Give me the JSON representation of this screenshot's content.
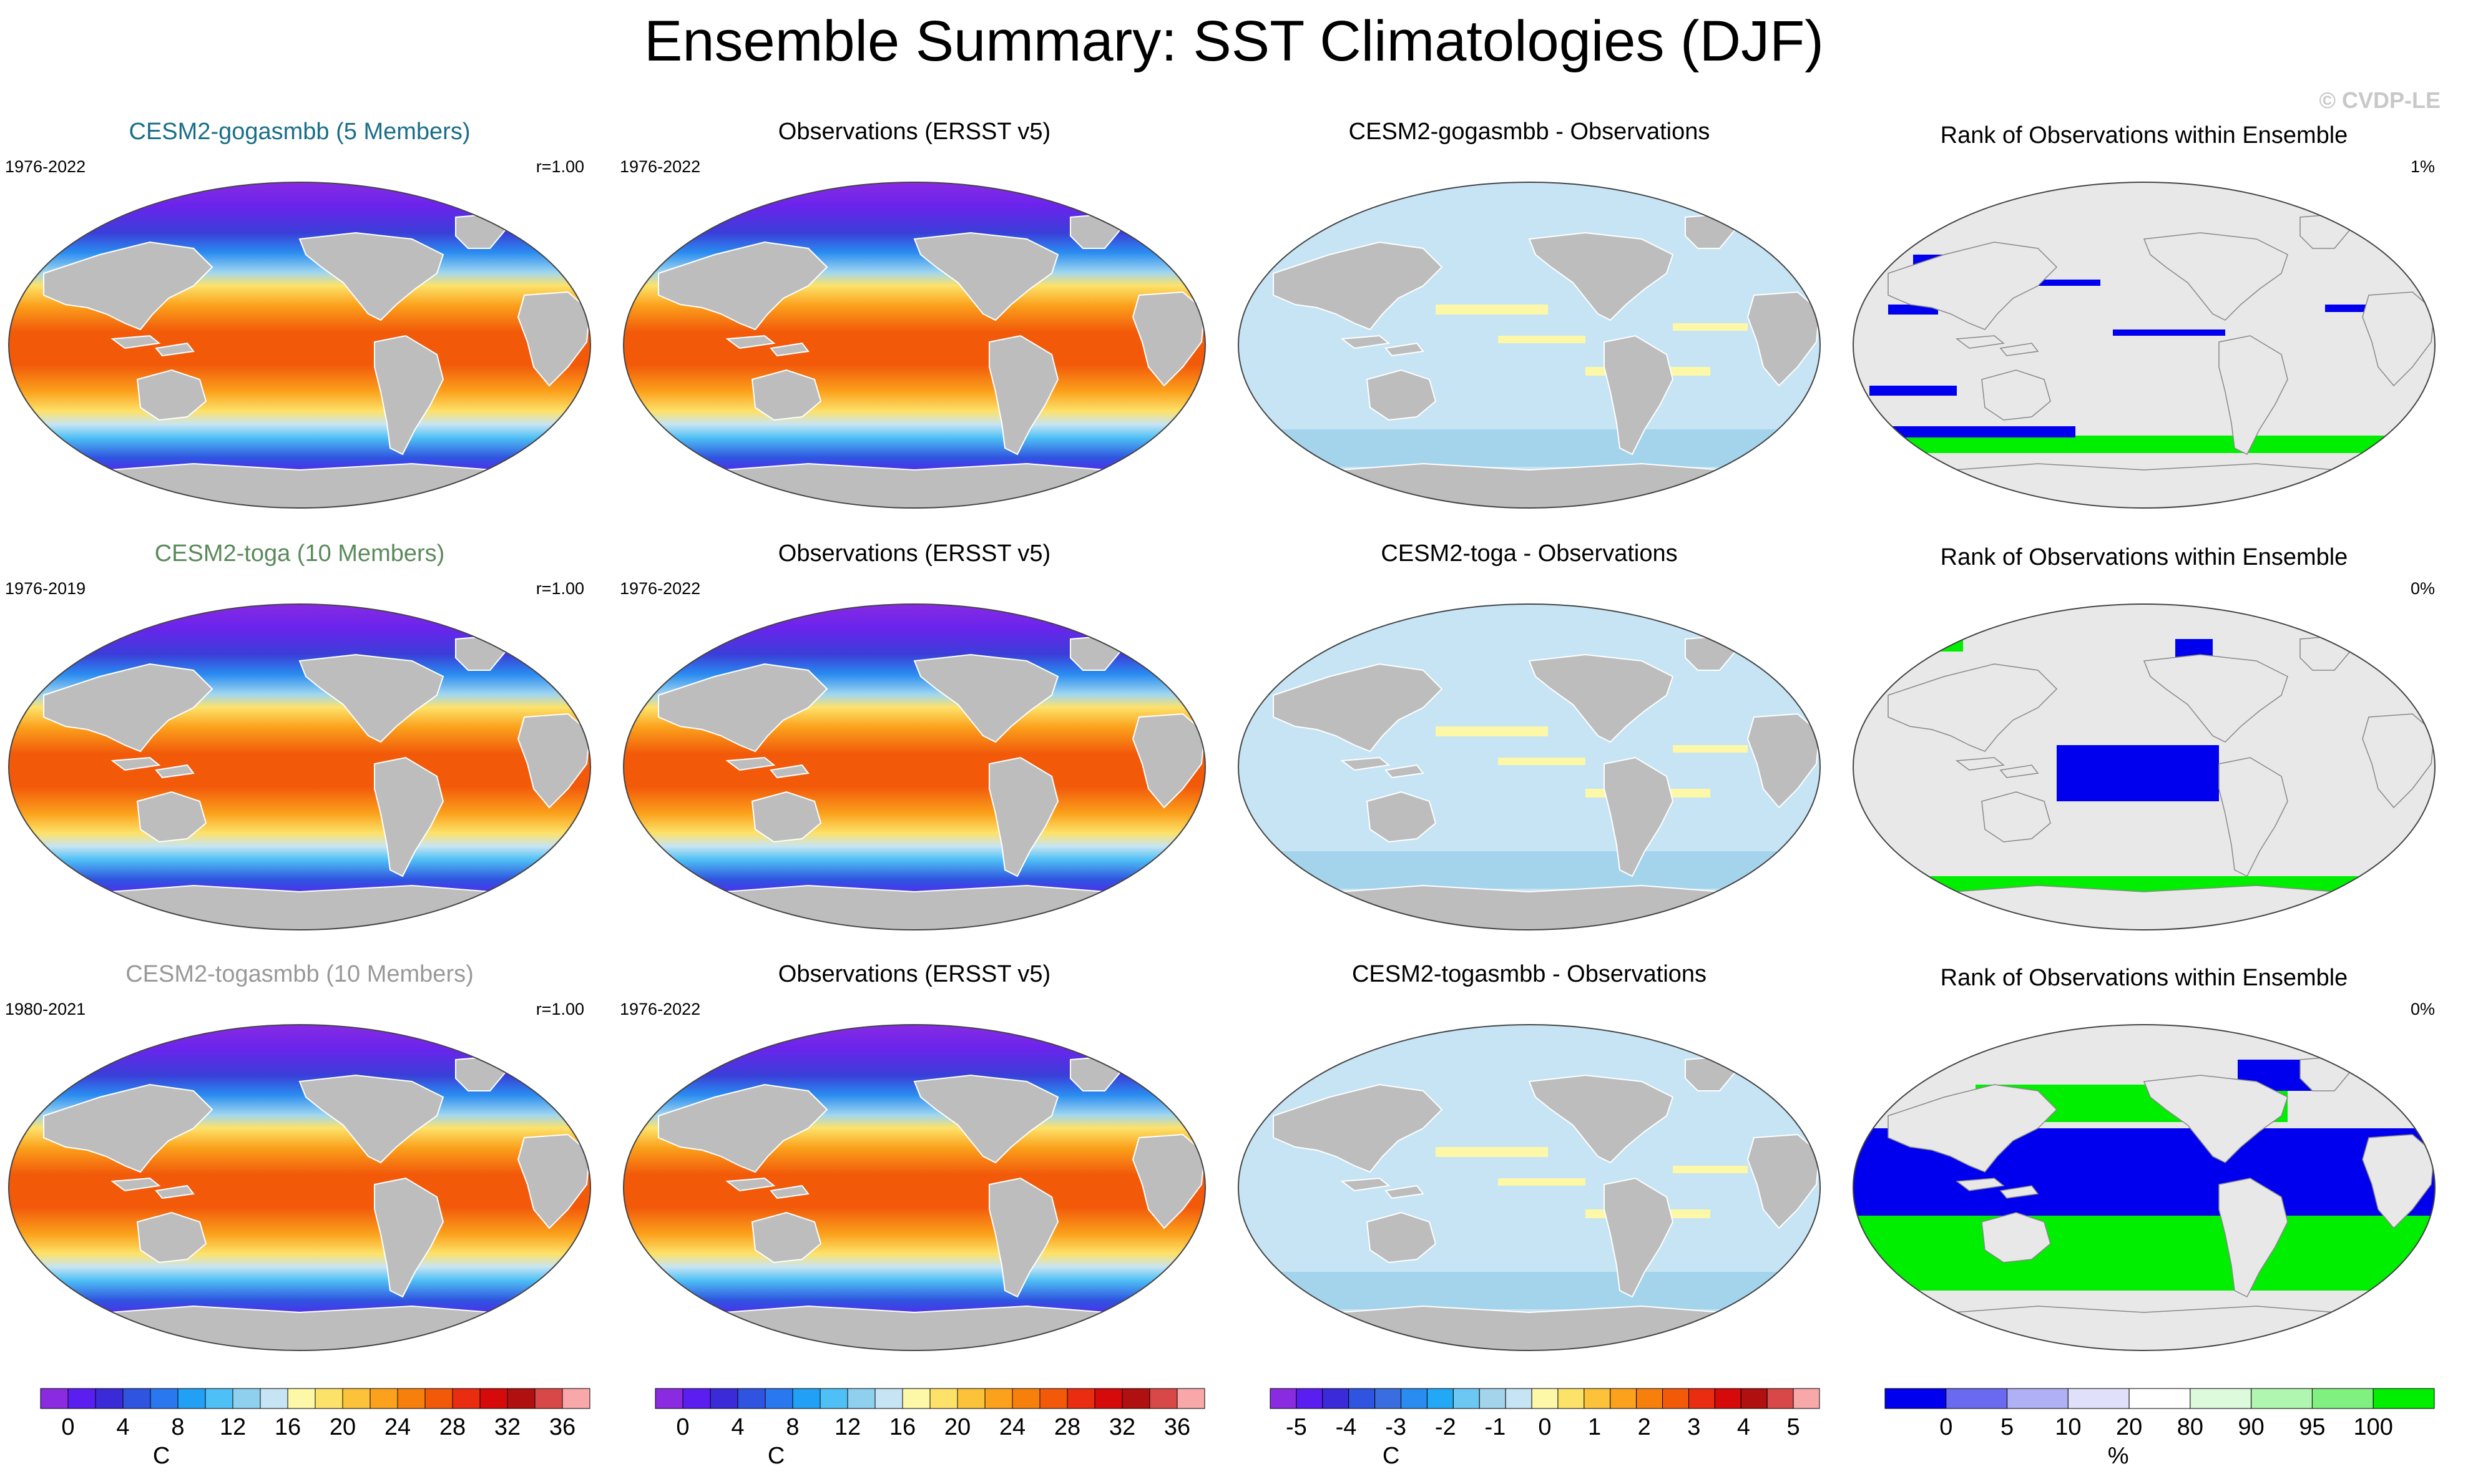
{
  "title": "Ensemble Summary: SST Climatologies (DJF)",
  "copyright": "© CVDP-LE",
  "rows": [
    {
      "model": {
        "title": "CESM2-gogasmbb (5 Members)",
        "title_color": "#1a6e8a",
        "years": "1976-2022",
        "corr": "r=1.00"
      },
      "obs": {
        "title": "Observations (ERSST v5)",
        "years": "1976-2022"
      },
      "diff": {
        "title": "CESM2-gogasmbb - Observations"
      },
      "rank": {
        "title": "Rank of Observations within Ensemble",
        "pct": "1%"
      }
    },
    {
      "model": {
        "title": "CESM2-toga (10 Members)",
        "title_color": "#5a8a5a",
        "years": "1976-2019",
        "corr": "r=1.00"
      },
      "obs": {
        "title": "Observations (ERSST v5)",
        "years": "1976-2022"
      },
      "diff": {
        "title": "CESM2-toga - Observations"
      },
      "rank": {
        "title": "Rank of Observations within Ensemble",
        "pct": "0%"
      }
    },
    {
      "model": {
        "title": "CESM2-togasmbb (10 Members)",
        "title_color": "#999999",
        "years": "1980-2021",
        "corr": "r=1.00"
      },
      "obs": {
        "title": "Observations (ERSST v5)",
        "years": "1976-2022"
      },
      "diff": {
        "title": "CESM2-togasmbb - Observations"
      },
      "rank": {
        "title": "Rank of Observations within Ensemble",
        "pct": "0%"
      }
    }
  ],
  "chart_data": {
    "type": "heatmap",
    "colorbars": [
      {
        "id": "sst",
        "unit": "C",
        "colors": [
          "#8a2be2",
          "#5a1ef0",
          "#3a2ad8",
          "#2f55e0",
          "#2a78f0",
          "#22a0f5",
          "#4fc0f5",
          "#8ed0ee",
          "#c6e4f4",
          "#fdf7a8",
          "#fde26a",
          "#fcc23a",
          "#fba11c",
          "#f7800c",
          "#f25a0a",
          "#ea2c10",
          "#d60a0a",
          "#b01010",
          "#d84848",
          "#f8a8a8"
        ],
        "ticks": [
          "0",
          "4",
          "8",
          "12",
          "16",
          "20",
          "24",
          "28",
          "32",
          "36"
        ]
      },
      {
        "id": "sst2",
        "unit": "C",
        "colors": [
          "#8a2be2",
          "#5a1ef0",
          "#3a2ad8",
          "#2f55e0",
          "#2a78f0",
          "#22a0f5",
          "#4fc0f5",
          "#8ed0ee",
          "#c6e4f4",
          "#fdf7a8",
          "#fde26a",
          "#fcc23a",
          "#fba11c",
          "#f7800c",
          "#f25a0a",
          "#ea2c10",
          "#d60a0a",
          "#b01010",
          "#d84848",
          "#f8a8a8"
        ],
        "ticks": [
          "0",
          "4",
          "8",
          "12",
          "16",
          "20",
          "24",
          "28",
          "32",
          "36"
        ]
      },
      {
        "id": "diff",
        "unit": "C",
        "colors": [
          "#8a2be2",
          "#5a1ef0",
          "#3a2ad8",
          "#2f55e0",
          "#3a6ee0",
          "#2a8cf0",
          "#22a8f5",
          "#6cc8f2",
          "#a4d4ec",
          "#c6e4f4",
          "#fdf7a8",
          "#fde26a",
          "#fcc23a",
          "#fba11c",
          "#f7800c",
          "#f25a0a",
          "#ea2c10",
          "#d60a0a",
          "#b01010",
          "#d84848",
          "#f8a8a8"
        ],
        "ticks": [
          "-5",
          "-4",
          "-3",
          "-2",
          "-1",
          "0",
          "1",
          "2",
          "3",
          "4",
          "5"
        ]
      },
      {
        "id": "rank",
        "unit": "%",
        "colors": [
          "#0000ee",
          "#6a6af0",
          "#b0b0f4",
          "#e0e0fa",
          "#ffffff",
          "#ddfadd",
          "#b0f5b0",
          "#80f080",
          "#00ee00"
        ],
        "ticks": [
          "0",
          "5",
          "10",
          "20",
          "80",
          "90",
          "95",
          "100"
        ]
      }
    ]
  }
}
